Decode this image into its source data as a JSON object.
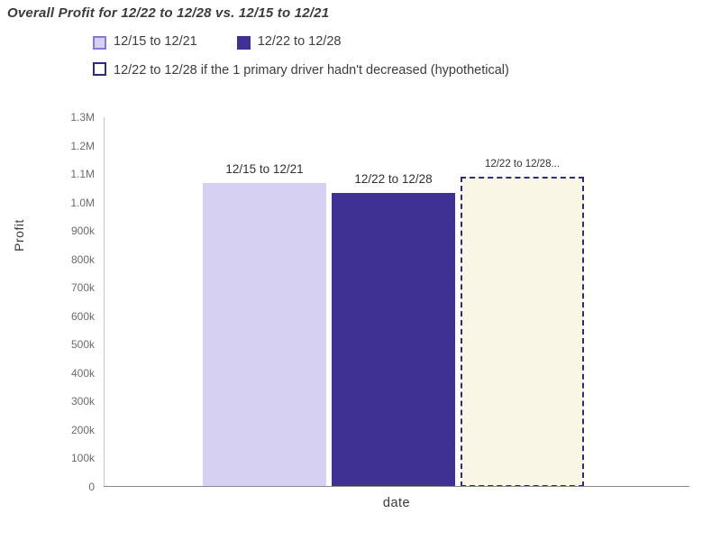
{
  "title": "Overall Profit for 12/22 to 12/28 vs. 12/15 to 12/21",
  "legend": {
    "items": [
      {
        "label": "12/15 to 12/21",
        "swatch": "lavender-filled"
      },
      {
        "label": "12/22 to 12/28",
        "swatch": "purple-filled"
      },
      {
        "label": "12/22 to 12/28 if the 1 primary driver hadn't decreased (hypothetical)",
        "swatch": "outlined"
      }
    ]
  },
  "chart_data": {
    "type": "bar",
    "title": "Overall Profit for 12/22 to 12/28 vs. 12/15 to 12/21",
    "xlabel": "date",
    "ylabel": "Profit",
    "ylim": [
      0,
      1300000
    ],
    "yticks": [
      "0",
      "100k",
      "200k",
      "300k",
      "400k",
      "500k",
      "600k",
      "700k",
      "800k",
      "900k",
      "1.0M",
      "1.1M",
      "1.2M",
      "1.3M"
    ],
    "grid": false,
    "legend_position": "top",
    "bars": [
      {
        "name": "12/15 to 12/21",
        "value": 1070000,
        "bar_label": "12/15 to 12/21",
        "fill": "#d6d1f3",
        "border": null,
        "small_label": false
      },
      {
        "name": "12/22 to 12/28",
        "value": 1035000,
        "bar_label": "12/22 to 12/28",
        "fill": "#3f3193",
        "border": null,
        "small_label": false
      },
      {
        "name": "12/22 to 12/28 if the 1 primary driver hadn't decreased (hypothetical)",
        "value": 1090000,
        "bar_label": "12/22 to 12/28...",
        "fill": "#faf6e6",
        "border": "#2d2a80",
        "border_style": "dash-dot",
        "small_label": true
      }
    ]
  },
  "colors": {
    "bar_previous": "#d6d1f3",
    "bar_current": "#3f3193",
    "bar_hypothetical_fill": "#faf6e6",
    "bar_hypothetical_border": "#2d2a80",
    "axis": "#8a8a8a",
    "tick_text": "#6b6b6b",
    "text": "#3b3b3b"
  }
}
